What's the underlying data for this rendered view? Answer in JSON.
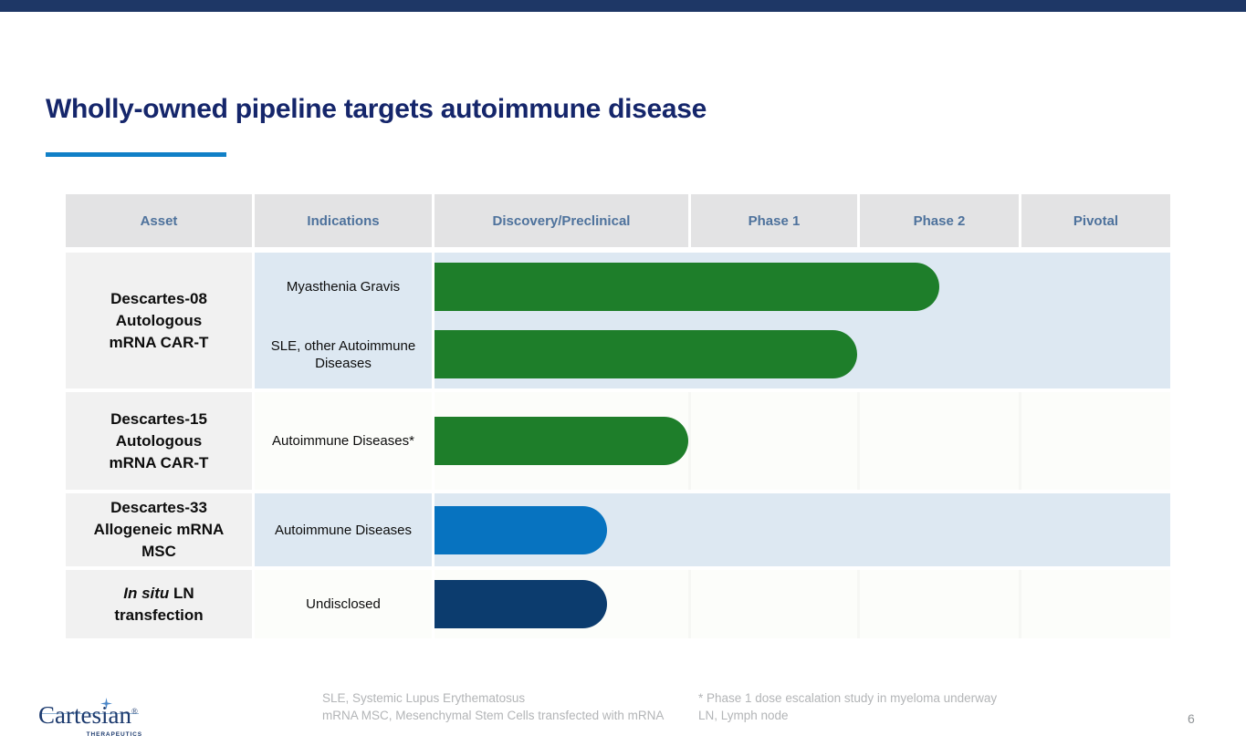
{
  "slide": {
    "title": "Wholly-owned pipeline targets autoimmune disease",
    "page_number": "6"
  },
  "logo": {
    "brand": "Cartesian",
    "registered": "®",
    "sub": "THERAPEUTICS"
  },
  "colors": {
    "top_bar": "#1e3766",
    "title_text": "#15266b",
    "accent_line": "#1180c7",
    "header_bg": "#e3e3e4",
    "header_text": "#4e729c",
    "asset_cell_bg": "#f1f1f1",
    "band_blue": "#dde8f2",
    "band_white": "#fcfdfa",
    "bar_green": "#1e7e2a",
    "bar_blue": "#0773c0",
    "bar_navy": "#0c3c6e"
  },
  "table": {
    "columns": [
      "Asset",
      "Indications",
      "Discovery/Preclinical",
      "Phase 1",
      "Phase 2",
      "Pivotal"
    ],
    "rows": [
      {
        "asset_lines": [
          [
            {
              "text": "Descartes-08"
            }
          ],
          [
            {
              "text": "Autologous"
            }
          ],
          [
            {
              "text": "mRNA CAR-T"
            }
          ]
        ],
        "band": "blue",
        "entries": [
          {
            "indication": "Myasthenia Gravis",
            "progress_units": 2.5,
            "bar_color": "#1e7e2a"
          },
          {
            "indication": "SLE, other Autoimmune Diseases",
            "progress_units": 2.0,
            "bar_color": "#1e7e2a"
          }
        ]
      },
      {
        "asset_lines": [
          [
            {
              "text": "Descartes-15"
            }
          ],
          [
            {
              "text": "Autologous"
            }
          ],
          [
            {
              "text": "mRNA CAR-T"
            }
          ]
        ],
        "band": "white",
        "entries": [
          {
            "indication": "Autoimmune Diseases*",
            "progress_units": 1.0,
            "bar_color": "#1e7e2a"
          }
        ]
      },
      {
        "asset_lines": [
          [
            {
              "text": "Descartes-33"
            }
          ],
          [
            {
              "text": "Allogeneic mRNA"
            }
          ],
          [
            {
              "text": "MSC"
            }
          ]
        ],
        "band": "blue",
        "entries": [
          {
            "indication": "Autoimmune Diseases",
            "progress_units": 0.68,
            "bar_color": "#0773c0"
          }
        ]
      },
      {
        "asset_lines": [
          [
            {
              "text": "In situ",
              "italic": true
            },
            {
              "text": " LN"
            }
          ],
          [
            {
              "text": "transfection"
            }
          ]
        ],
        "band": "white",
        "entries": [
          {
            "indication": "Undisclosed",
            "progress_units": 0.68,
            "bar_color": "#0c3c6e"
          }
        ]
      }
    ]
  },
  "footnotes": {
    "left": [
      "SLE, Systemic Lupus Erythematosus",
      "mRNA MSC, Mesenchymal Stem Cells transfected with mRNA"
    ],
    "right": [
      "* Phase 1 dose escalation study in myeloma underway",
      "LN, Lymph node"
    ]
  },
  "chart_data": {
    "type": "bar",
    "orientation": "horizontal",
    "title": "Wholly-owned pipeline targets autoimmune disease",
    "stages": [
      "Discovery/Preclinical",
      "Phase 1",
      "Phase 2",
      "Pivotal"
    ],
    "xlim": [
      0,
      4
    ],
    "series": [
      {
        "asset": "Descartes-08 Autologous mRNA CAR-T",
        "indication": "Myasthenia Gravis",
        "progress_stage_units": 2.5,
        "stage_reached": "Phase 2 (mid)",
        "color": "#1e7e2a"
      },
      {
        "asset": "Descartes-08 Autologous mRNA CAR-T",
        "indication": "SLE, other Autoimmune Diseases",
        "progress_stage_units": 2.0,
        "stage_reached": "Phase 1 (complete)",
        "color": "#1e7e2a"
      },
      {
        "asset": "Descartes-15 Autologous mRNA CAR-T",
        "indication": "Autoimmune Diseases*",
        "progress_stage_units": 1.0,
        "stage_reached": "Discovery/Preclinical (complete)",
        "color": "#1e7e2a"
      },
      {
        "asset": "Descartes-33 Allogeneic mRNA MSC",
        "indication": "Autoimmune Diseases",
        "progress_stage_units": 0.68,
        "stage_reached": "Discovery/Preclinical (partial)",
        "color": "#0773c0"
      },
      {
        "asset": "In situ LN transfection",
        "indication": "Undisclosed",
        "progress_stage_units": 0.68,
        "stage_reached": "Discovery/Preclinical (partial)",
        "color": "#0c3c6e"
      }
    ]
  }
}
